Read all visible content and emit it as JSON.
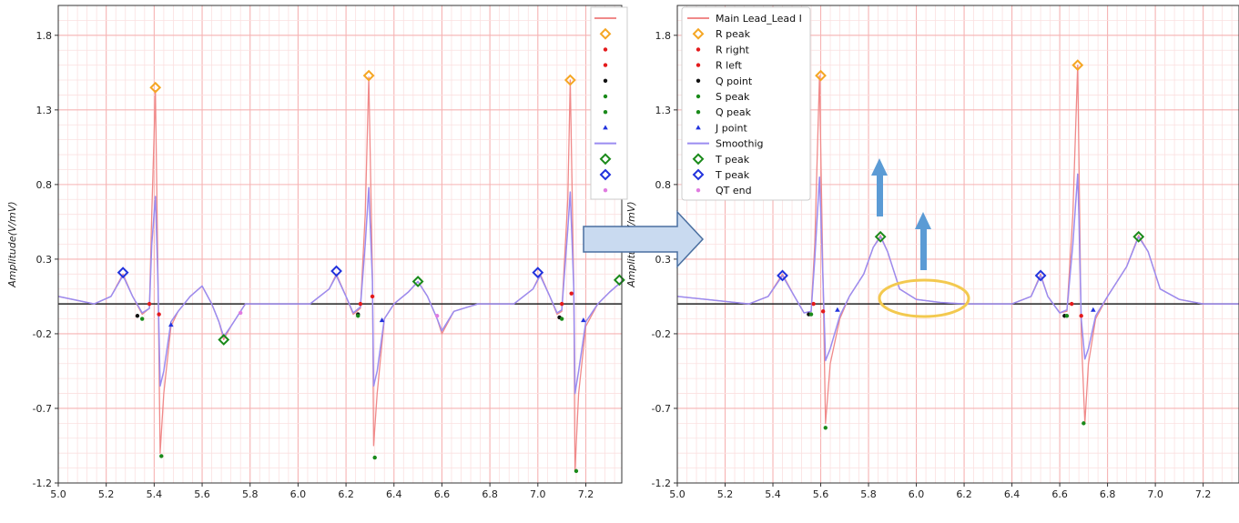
{
  "colors": {
    "ecg": "#f08a8a",
    "smooth": "#9b8cf0",
    "grid_major": "#f6b3b3",
    "grid_minor": "#fbe0e0",
    "baseline": "#222222",
    "r_peak": "#f5a623",
    "r_right": "#e41a1c",
    "r_left": "#e41a1c",
    "q_point": "#111111",
    "s_peak": "#1a8a1a",
    "q_peak": "#1a8a1a",
    "j_point": "#2233dd",
    "t_peak_green": "#1a8a1a",
    "t_peak_blue": "#2233dd",
    "qt_end": "#e07be0",
    "arrow": "#5b9bd5",
    "big_arrow_fill": "#c9daf0",
    "big_arrow_stroke": "#4a6fa0",
    "ellipse": "#f3c94f"
  },
  "chart_data": [
    {
      "type": "line",
      "panel": "left",
      "xlim": [
        5.0,
        7.35
      ],
      "ylim": [
        -1.2,
        2.0
      ],
      "xticks": [
        "5.0",
        "5.2",
        "5.4",
        "5.6",
        "5.8",
        "6.0",
        "6.2",
        "6.4",
        "6.6",
        "6.8",
        "7.0",
        "7.2"
      ],
      "yticks": [
        "1.8",
        "1.3",
        "0.8",
        "0.3",
        "-0.2",
        "-0.7",
        "-1.2"
      ],
      "xlabel": "",
      "ylabel": "Amplitude(V/mV)",
      "grid": true,
      "legend": {
        "position": "top-right",
        "labels_visible": false
      },
      "series": [
        {
          "name": "",
          "role": "ecg",
          "x": [
            5.0,
            5.15,
            5.22,
            5.27,
            5.31,
            5.35,
            5.38,
            5.39,
            5.405,
            5.415,
            5.425,
            5.44,
            5.47,
            5.5,
            5.55,
            5.6,
            5.64,
            5.67,
            5.69,
            5.72,
            5.78,
            5.9,
            6.05,
            6.13,
            6.16,
            6.2,
            6.23,
            6.26,
            6.28,
            6.295,
            6.31,
            6.315,
            6.33,
            6.36,
            6.4,
            6.46,
            6.5,
            6.54,
            6.58,
            6.6,
            6.65,
            6.75,
            6.9,
            6.98,
            7.01,
            7.05,
            7.08,
            7.1,
            7.125,
            7.135,
            7.15,
            7.155,
            7.17,
            7.2,
            7.25,
            7.3,
            7.35
          ],
          "y": [
            0.05,
            0.0,
            0.05,
            0.2,
            0.05,
            -0.07,
            -0.03,
            0.6,
            1.43,
            0.3,
            -1.0,
            -0.6,
            -0.15,
            -0.05,
            0.05,
            0.12,
            0.0,
            -0.12,
            -0.24,
            -0.15,
            0.0,
            0.0,
            0.0,
            0.1,
            0.2,
            0.05,
            -0.07,
            -0.03,
            0.6,
            1.52,
            0.2,
            -0.95,
            -0.6,
            -0.1,
            0.0,
            0.08,
            0.15,
            0.05,
            -0.1,
            -0.2,
            -0.05,
            0.0,
            0.0,
            0.1,
            0.2,
            0.05,
            -0.07,
            -0.05,
            0.7,
            1.5,
            0.1,
            -1.12,
            -0.6,
            -0.15,
            0.0,
            0.08,
            0.15
          ]
        },
        {
          "name": "",
          "role": "smooth",
          "x": [
            5.0,
            5.15,
            5.22,
            5.27,
            5.31,
            5.35,
            5.38,
            5.39,
            5.405,
            5.415,
            5.425,
            5.44,
            5.47,
            5.5,
            5.55,
            5.6,
            5.64,
            5.67,
            5.69,
            5.72,
            5.78,
            5.9,
            6.05,
            6.13,
            6.16,
            6.2,
            6.23,
            6.26,
            6.28,
            6.295,
            6.31,
            6.315,
            6.33,
            6.36,
            6.4,
            6.46,
            6.5,
            6.54,
            6.58,
            6.6,
            6.65,
            6.75,
            6.9,
            6.98,
            7.01,
            7.05,
            7.08,
            7.1,
            7.125,
            7.135,
            7.15,
            7.155,
            7.17,
            7.2,
            7.25,
            7.3,
            7.35
          ],
          "y": [
            0.05,
            0.0,
            0.05,
            0.19,
            0.05,
            -0.06,
            -0.03,
            0.4,
            0.72,
            0.2,
            -0.55,
            -0.45,
            -0.12,
            -0.05,
            0.05,
            0.12,
            0.0,
            -0.12,
            -0.22,
            -0.15,
            0.0,
            0.0,
            0.0,
            0.1,
            0.19,
            0.05,
            -0.06,
            -0.02,
            0.4,
            0.78,
            0.15,
            -0.55,
            -0.45,
            -0.1,
            0.0,
            0.08,
            0.15,
            0.05,
            -0.1,
            -0.18,
            -0.05,
            0.0,
            0.0,
            0.1,
            0.19,
            0.05,
            -0.06,
            -0.04,
            0.5,
            0.75,
            0.1,
            -0.6,
            -0.45,
            -0.12,
            0.0,
            0.08,
            0.15
          ]
        }
      ],
      "markers": [
        {
          "kind": "r_peak",
          "points": [
            [
              5.405,
              1.45
            ],
            [
              6.295,
              1.53
            ],
            [
              7.135,
              1.5
            ]
          ]
        },
        {
          "kind": "r_right",
          "points": [
            [
              5.38,
              0.0
            ],
            [
              6.26,
              0.0
            ],
            [
              7.1,
              0.0
            ]
          ]
        },
        {
          "kind": "r_left",
          "points": [
            [
              5.42,
              -0.07
            ],
            [
              6.31,
              0.05
            ],
            [
              7.14,
              0.07
            ]
          ]
        },
        {
          "kind": "q_point",
          "points": [
            [
              5.33,
              -0.08
            ],
            [
              6.25,
              -0.07
            ],
            [
              7.09,
              -0.09
            ]
          ]
        },
        {
          "kind": "s_peak",
          "points": [
            [
              5.43,
              -1.02
            ],
            [
              6.32,
              -1.03
            ],
            [
              7.16,
              -1.12
            ]
          ]
        },
        {
          "kind": "q_peak",
          "points": [
            [
              5.35,
              -0.1
            ],
            [
              6.25,
              -0.08
            ],
            [
              7.1,
              -0.1
            ]
          ]
        },
        {
          "kind": "j_point",
          "points": [
            [
              5.47,
              -0.14
            ],
            [
              6.35,
              -0.11
            ],
            [
              7.19,
              -0.11
            ]
          ]
        },
        {
          "kind": "t_peak_green",
          "points": [
            [
              5.69,
              -0.24
            ],
            [
              6.5,
              0.15
            ],
            [
              7.34,
              0.16
            ]
          ]
        },
        {
          "kind": "t_peak_blue",
          "points": [
            [
              5.27,
              0.21
            ],
            [
              6.16,
              0.22
            ],
            [
              7.0,
              0.21
            ]
          ]
        },
        {
          "kind": "qt_end",
          "points": [
            [
              5.76,
              -0.06
            ],
            [
              6.58,
              -0.08
            ]
          ]
        }
      ]
    },
    {
      "type": "line",
      "panel": "right",
      "xlim": [
        5.0,
        7.35
      ],
      "ylim": [
        -1.2,
        2.0
      ],
      "xticks": [
        "5.0",
        "5.2",
        "5.4",
        "5.6",
        "5.8",
        "6.0",
        "6.2",
        "6.4",
        "6.6",
        "6.8",
        "7.0",
        "7.2"
      ],
      "yticks": [
        "1.8",
        "1.3",
        "0.8",
        "0.3",
        "-0.2",
        "-0.7",
        "-1.2"
      ],
      "xlabel": "",
      "ylabel": "Amplitude(V/mV)",
      "grid": true,
      "legend": {
        "position": "top-left",
        "labels_visible": true
      },
      "series": [
        {
          "name": "Main Lead_Lead I",
          "role": "ecg",
          "x": [
            5.0,
            5.3,
            5.38,
            5.44,
            5.49,
            5.53,
            5.56,
            5.575,
            5.595,
            5.605,
            5.62,
            5.64,
            5.68,
            5.72,
            5.78,
            5.82,
            5.85,
            5.88,
            5.93,
            6.0,
            6.1,
            6.2,
            6.3,
            6.4,
            6.48,
            6.52,
            6.55,
            6.6,
            6.63,
            6.655,
            6.675,
            6.68,
            6.69,
            6.705,
            6.72,
            6.75,
            6.8,
            6.88,
            6.93,
            6.97,
            7.02,
            7.1,
            7.2,
            7.35
          ],
          "y": [
            0.05,
            0.0,
            0.05,
            0.2,
            0.05,
            -0.06,
            -0.05,
            0.4,
            1.53,
            0.6,
            -0.8,
            -0.4,
            -0.1,
            0.05,
            0.2,
            0.38,
            0.46,
            0.35,
            0.1,
            0.03,
            0.01,
            0.0,
            0.0,
            0.0,
            0.05,
            0.2,
            0.05,
            -0.06,
            -0.05,
            0.6,
            1.6,
            1.0,
            -0.2,
            -0.8,
            -0.4,
            -0.1,
            0.05,
            0.25,
            0.46,
            0.35,
            0.1,
            0.03,
            0.0,
            0.0
          ]
        },
        {
          "name": "Smoothig",
          "role": "smooth",
          "x": [
            5.0,
            5.3,
            5.38,
            5.44,
            5.49,
            5.53,
            5.56,
            5.575,
            5.595,
            5.605,
            5.62,
            5.64,
            5.68,
            5.72,
            5.78,
            5.82,
            5.85,
            5.88,
            5.93,
            6.0,
            6.1,
            6.2,
            6.3,
            6.4,
            6.48,
            6.52,
            6.55,
            6.6,
            6.63,
            6.655,
            6.675,
            6.68,
            6.69,
            6.705,
            6.72,
            6.75,
            6.8,
            6.88,
            6.93,
            6.97,
            7.02,
            7.1,
            7.2,
            7.35
          ],
          "y": [
            0.05,
            0.0,
            0.05,
            0.19,
            0.05,
            -0.06,
            -0.05,
            0.3,
            0.85,
            0.4,
            -0.38,
            -0.3,
            -0.08,
            0.05,
            0.2,
            0.38,
            0.45,
            0.35,
            0.1,
            0.03,
            0.01,
            0.0,
            0.0,
            0.0,
            0.05,
            0.19,
            0.05,
            -0.06,
            -0.04,
            0.4,
            0.87,
            0.6,
            -0.1,
            -0.37,
            -0.3,
            -0.08,
            0.05,
            0.25,
            0.45,
            0.35,
            0.1,
            0.03,
            0.0,
            0.0
          ]
        }
      ],
      "markers": [
        {
          "kind": "r_peak",
          "points": [
            [
              5.6,
              1.53
            ],
            [
              6.675,
              1.6
            ]
          ]
        },
        {
          "kind": "r_right",
          "points": [
            [
              5.57,
              0.0
            ],
            [
              6.65,
              0.0
            ]
          ]
        },
        {
          "kind": "r_left",
          "points": [
            [
              5.61,
              -0.05
            ],
            [
              6.69,
              -0.08
            ]
          ]
        },
        {
          "kind": "q_point",
          "points": [
            [
              5.55,
              -0.07
            ],
            [
              6.62,
              -0.08
            ]
          ]
        },
        {
          "kind": "s_peak",
          "points": [
            [
              5.62,
              -0.83
            ],
            [
              6.7,
              -0.8
            ]
          ]
        },
        {
          "kind": "q_peak",
          "points": [
            [
              5.56,
              -0.07
            ],
            [
              6.63,
              -0.08
            ]
          ]
        },
        {
          "kind": "j_point",
          "points": [
            [
              5.67,
              -0.04
            ],
            [
              6.74,
              -0.04
            ]
          ]
        },
        {
          "kind": "t_peak_green",
          "points": [
            [
              5.85,
              0.45
            ],
            [
              6.93,
              0.45
            ]
          ]
        },
        {
          "kind": "t_peak_blue",
          "points": [
            [
              5.44,
              0.19
            ],
            [
              6.52,
              0.19
            ]
          ]
        },
        {
          "kind": "qt_end",
          "points": []
        }
      ]
    }
  ],
  "legend": {
    "main_lead": "Main Lead_Lead I",
    "r_peak": "R peak",
    "r_right": "R right",
    "r_left": "R left",
    "q_point": "Q point",
    "s_peak": "S peak",
    "q_peak": "Q peak",
    "j_point": "J point",
    "smoothing": "Smoothig",
    "t_peak_1": "T peak",
    "t_peak_2": "T peak",
    "qt_end": "QT end"
  }
}
